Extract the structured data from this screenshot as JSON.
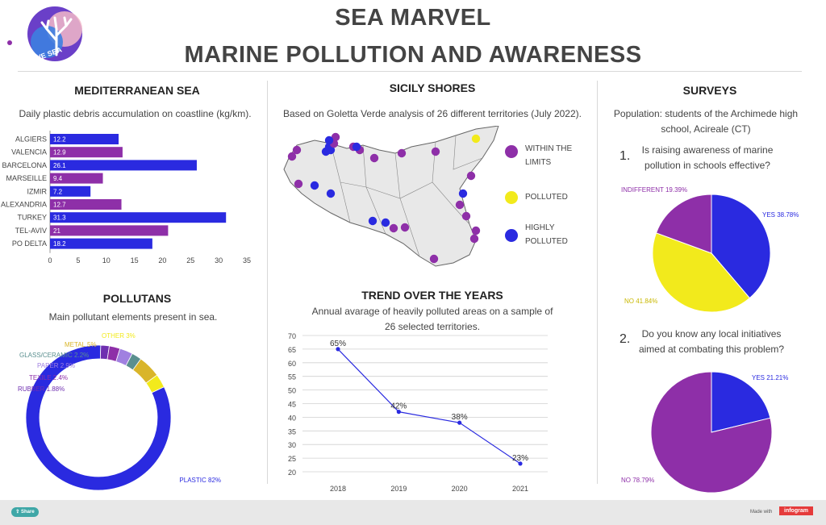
{
  "header": {
    "title_line1": "SEA MARVEL",
    "title_line2": "MARINE POLLUTION AND AWARENESS",
    "logo_text": "WE SEA"
  },
  "mediterranean": {
    "title": "MEDITERRANEAN SEA",
    "subtitle": "Daily plastic debris accumulation on coastline (kg/km)."
  },
  "pollutants": {
    "title": "POLLUTANS",
    "subtitle": "Main pollutant elements present in sea."
  },
  "sicily": {
    "title": "SICILY SHORES",
    "subtitle": "Based on Goletta Verde analysis of 26 different territories (July 2022).",
    "legend": [
      {
        "label_line1": "WITHIN THE",
        "label_line2": "LIMITS",
        "color": "#8e2fa8"
      },
      {
        "label_line1": "POLLUTED",
        "label_line2": "",
        "color": "#f2ea1c"
      },
      {
        "label_line1": "HIGHLY",
        "label_line2": "POLLUTED",
        "color": "#2a2ae0"
      }
    ]
  },
  "trend": {
    "title": "TREND OVER THE YEARS",
    "subtitle_line1": "Annual avarage of heavily polluted areas on a sample of",
    "subtitle_line2": "26 selected territories."
  },
  "surveys": {
    "title": "SURVEYS",
    "subtitle_line1": "Population: students of the Archimede high",
    "subtitle_line2": "school, Acireale (CT)",
    "q1_number": "1.",
    "q1_line1": "Is raising awareness of marine",
    "q1_line2": "pollution in schools effective?",
    "q2_number": "2.",
    "q2_line1": "Do you know any local initiatives",
    "q2_line2": "aimed at combating this problem?"
  },
  "footer": {
    "share_label": "Share",
    "made_with": "Made with",
    "brand": "infogram"
  },
  "colors": {
    "blue": "#2a2ae0",
    "purple": "#8e2fa8",
    "yellow": "#f2ea1c"
  },
  "chart_data": [
    {
      "type": "bar",
      "orientation": "horizontal",
      "categories": [
        "ALGIERS",
        "VALENCIA",
        "BARCELONA",
        "MARSEILLE",
        "IZMIR",
        "ALEXANDRIA",
        "TURKEY",
        "TEL-AVIV",
        "PO DELTA"
      ],
      "values": [
        12.2,
        12.9,
        26.1,
        9.4,
        7.2,
        12.7,
        31.3,
        21,
        18.2
      ],
      "value_labels": [
        "12.2",
        "12.9",
        "26.1",
        "9.4",
        "7.2",
        "12.7",
        "31.3",
        "21",
        "18.2"
      ],
      "bar_colors": [
        "#2a2ae0",
        "#8e2fa8",
        "#2a2ae0",
        "#8e2fa8",
        "#2a2ae0",
        "#8e2fa8",
        "#2a2ae0",
        "#8e2fa8",
        "#2a2ae0"
      ],
      "xlim": [
        0,
        35
      ],
      "xticks": [
        "0",
        "5",
        "10",
        "15",
        "20",
        "25",
        "30",
        "35"
      ]
    },
    {
      "type": "pie",
      "style": "donut",
      "slices": [
        {
          "label": "PLASTIC 82%",
          "value": 82,
          "color": "#2a2ae0"
        },
        {
          "label": "RUBBER 1.88%",
          "value": 1.88,
          "color": "#6f2fb0"
        },
        {
          "label": "TEXILE 2.4%",
          "value": 2.4,
          "color": "#8e2fa8"
        },
        {
          "label": "PAPER 2.9%",
          "value": 2.9,
          "color": "#a080e0"
        },
        {
          "label": "GLASS/CERAMIC 2.2%",
          "value": 2.2,
          "color": "#5a8f8f"
        },
        {
          "label": "METAL 5%",
          "value": 5,
          "color": "#d9b52a"
        },
        {
          "label": "OTHER 3%",
          "value": 3,
          "color": "#f2ea1c"
        }
      ]
    },
    {
      "type": "line",
      "x": [
        "2018",
        "2019",
        "2020",
        "2021"
      ],
      "values": [
        65,
        42,
        38,
        23
      ],
      "value_labels": [
        "65%",
        "42%",
        "38%",
        "23%"
      ],
      "ylim": [
        20,
        70
      ],
      "yticks": [
        "20",
        "25",
        "30",
        "35",
        "40",
        "45",
        "50",
        "55",
        "60",
        "65",
        "70"
      ]
    },
    {
      "type": "pie",
      "slices": [
        {
          "label": "YES 38.78%",
          "value": 38.78,
          "color": "#2a2ae0"
        },
        {
          "label": "NO 41.84%",
          "value": 41.84,
          "color": "#f2ea1c"
        },
        {
          "label": "INDIFFERENT 19.39%",
          "value": 19.39,
          "color": "#8e2fa8"
        }
      ]
    },
    {
      "type": "pie",
      "slices": [
        {
          "label": "YES 21.21%",
          "value": 21.21,
          "color": "#2a2ae0"
        },
        {
          "label": "NO 78.79%",
          "value": 78.79,
          "color": "#8e2fa8"
        }
      ]
    }
  ]
}
